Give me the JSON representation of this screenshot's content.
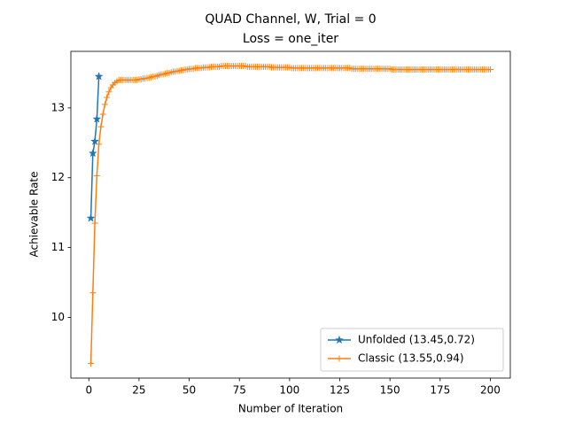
{
  "chart_data": {
    "type": "line",
    "title": "QUAD Channel, W, Trial = 0",
    "subtitle": "Loss = one_iter",
    "x_label": "Number of Iteration",
    "y_label": "Achievable Rate",
    "xlim": [
      -8.95,
      209.95
    ],
    "ylim": [
      9.13,
      13.81
    ],
    "xticks": [
      0,
      25,
      50,
      75,
      100,
      125,
      150,
      175,
      200
    ],
    "yticks": [
      10,
      11,
      12,
      13
    ],
    "legend": "lower right",
    "series": [
      {
        "name": "Unfolded (13.45,0.72)",
        "color": "#1f77b4",
        "marker": "*",
        "x": [
          1,
          2,
          3,
          4,
          5
        ],
        "values": [
          11.42,
          12.35,
          12.52,
          12.84,
          13.45
        ]
      },
      {
        "name": "Classic (13.55,0.94)",
        "color": "#ff7f0e",
        "marker": "+",
        "x": [
          1,
          2,
          3,
          4,
          5,
          6,
          7,
          8,
          9,
          10,
          11,
          12,
          13,
          14,
          15,
          16,
          17,
          18,
          19,
          20,
          21,
          22,
          23,
          24,
          25,
          26,
          27,
          28,
          29,
          30,
          31,
          32,
          33,
          34,
          35,
          36,
          37,
          38,
          39,
          40,
          41,
          42,
          43,
          44,
          45,
          46,
          47,
          48,
          49,
          50,
          51,
          52,
          53,
          54,
          55,
          56,
          57,
          58,
          59,
          60,
          61,
          62,
          63,
          64,
          65,
          66,
          67,
          68,
          69,
          70,
          71,
          72,
          73,
          74,
          75,
          76,
          77,
          78,
          79,
          80,
          81,
          82,
          83,
          84,
          85,
          86,
          87,
          88,
          89,
          90,
          91,
          92,
          93,
          94,
          95,
          96,
          97,
          98,
          99,
          100,
          101,
          102,
          103,
          104,
          105,
          106,
          107,
          108,
          109,
          110,
          111,
          112,
          113,
          114,
          115,
          116,
          117,
          118,
          119,
          120,
          121,
          122,
          123,
          124,
          125,
          126,
          127,
          128,
          129,
          130,
          131,
          132,
          133,
          134,
          135,
          136,
          137,
          138,
          139,
          140,
          141,
          142,
          143,
          144,
          145,
          146,
          147,
          148,
          149,
          150,
          151,
          152,
          153,
          154,
          155,
          156,
          157,
          158,
          159,
          160,
          161,
          162,
          163,
          164,
          165,
          166,
          167,
          168,
          169,
          170,
          171,
          172,
          173,
          174,
          175,
          176,
          177,
          178,
          179,
          180,
          181,
          182,
          183,
          184,
          185,
          186,
          187,
          188,
          189,
          190,
          191,
          192,
          193,
          194,
          195,
          196,
          197,
          198,
          199,
          200
        ],
        "values": [
          9.34,
          10.35,
          11.35,
          12.03,
          12.48,
          12.73,
          12.91,
          13.05,
          13.15,
          13.23,
          13.29,
          13.33,
          13.36,
          13.38,
          13.4,
          13.4,
          13.4,
          13.4,
          13.4,
          13.4,
          13.4,
          13.4,
          13.4,
          13.4,
          13.41,
          13.41,
          13.42,
          13.42,
          13.43,
          13.43,
          13.44,
          13.45,
          13.45,
          13.46,
          13.47,
          13.48,
          13.48,
          13.49,
          13.5,
          13.5,
          13.51,
          13.52,
          13.52,
          13.53,
          13.53,
          13.54,
          13.54,
          13.55,
          13.55,
          13.56,
          13.56,
          13.56,
          13.57,
          13.57,
          13.57,
          13.57,
          13.58,
          13.58,
          13.58,
          13.58,
          13.59,
          13.59,
          13.59,
          13.59,
          13.59,
          13.6,
          13.6,
          13.6,
          13.6,
          13.6,
          13.6,
          13.6,
          13.6,
          13.6,
          13.6,
          13.6,
          13.6,
          13.6,
          13.59,
          13.59,
          13.59,
          13.59,
          13.59,
          13.59,
          13.59,
          13.59,
          13.59,
          13.59,
          13.59,
          13.59,
          13.58,
          13.58,
          13.58,
          13.58,
          13.58,
          13.58,
          13.58,
          13.58,
          13.58,
          13.58,
          13.57,
          13.57,
          13.57,
          13.57,
          13.57,
          13.57,
          13.57,
          13.57,
          13.57,
          13.57,
          13.57,
          13.57,
          13.57,
          13.57,
          13.57,
          13.57,
          13.57,
          13.57,
          13.57,
          13.57,
          13.57,
          13.57,
          13.57,
          13.57,
          13.57,
          13.57,
          13.57,
          13.57,
          13.57,
          13.57,
          13.56,
          13.56,
          13.56,
          13.56,
          13.56,
          13.56,
          13.56,
          13.56,
          13.56,
          13.56,
          13.56,
          13.56,
          13.56,
          13.56,
          13.56,
          13.56,
          13.56,
          13.56,
          13.56,
          13.56,
          13.55,
          13.55,
          13.55,
          13.55,
          13.55,
          13.55,
          13.55,
          13.55,
          13.55,
          13.55,
          13.55,
          13.55,
          13.55,
          13.55,
          13.55,
          13.55,
          13.55,
          13.55,
          13.55,
          13.55,
          13.55,
          13.55,
          13.55,
          13.55,
          13.55,
          13.55,
          13.55,
          13.55,
          13.55,
          13.55,
          13.55,
          13.55,
          13.55,
          13.55,
          13.55,
          13.55,
          13.55,
          13.55,
          13.55,
          13.55,
          13.55,
          13.55,
          13.55,
          13.55,
          13.55,
          13.55,
          13.55,
          13.55,
          13.55,
          13.55
        ]
      }
    ]
  }
}
